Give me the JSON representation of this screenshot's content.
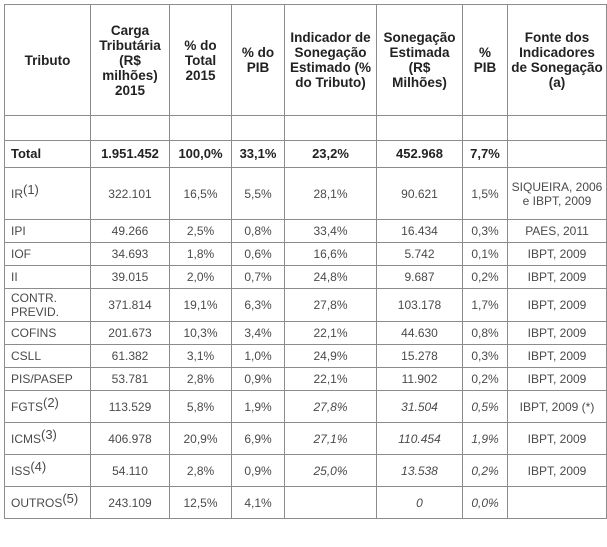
{
  "headers": [
    "Tributo",
    "Carga Tributária (R$ milhões) 2015",
    "% do Total 2015",
    "% do PIB",
    "Indicador de Sonegação Estimado (% do Tributo)",
    "Sonegação Estimada (R$ Milhões)",
    "% PIB",
    "Fonte dos Indicadores de Sonegação (a)"
  ],
  "total": {
    "tributo": "Total",
    "carga": "1.951.452",
    "pct_total": "100,0%",
    "pct_pib": "33,1%",
    "indicador": "23,2%",
    "sonegacao": "452.968",
    "sonegacao_pib": "7,7%",
    "fonte": ""
  },
  "rows": [
    {
      "tributo": "IR",
      "note": "(1)",
      "carga": "322.101",
      "pct_total": "16,5%",
      "pct_pib": "5,5%",
      "indicador": "28,1%",
      "sonegacao": "90.621",
      "sonegacao_pib": "1,5%",
      "fonte": "SIQUEIRA, 2006 e IBPT, 2009"
    },
    {
      "tributo": "IPI",
      "note": "",
      "carga": "49.266",
      "pct_total": "2,5%",
      "pct_pib": "0,8%",
      "indicador": "33,4%",
      "sonegacao": "16.434",
      "sonegacao_pib": "0,3%",
      "fonte": "PAES, 2011"
    },
    {
      "tributo": "IOF",
      "note": "",
      "carga": "34.693",
      "pct_total": "1,8%",
      "pct_pib": "0,6%",
      "indicador": "16,6%",
      "sonegacao": "5.742",
      "sonegacao_pib": "0,1%",
      "fonte": "IBPT, 2009"
    },
    {
      "tributo": "II",
      "note": "",
      "carga": "39.015",
      "pct_total": "2,0%",
      "pct_pib": "0,7%",
      "indicador": "24,8%",
      "sonegacao": "9.687",
      "sonegacao_pib": "0,2%",
      "fonte": "IBPT, 2009"
    },
    {
      "tributo": "CONTR. PREVID.",
      "note": "",
      "carga": "371.814",
      "pct_total": "19,1%",
      "pct_pib": "6,3%",
      "indicador": "27,8%",
      "sonegacao": "103.178",
      "sonegacao_pib": "1,7%",
      "fonte": "IBPT, 2009"
    },
    {
      "tributo": "COFINS",
      "note": "",
      "carga": "201.673",
      "pct_total": "10,3%",
      "pct_pib": "3,4%",
      "indicador": "22,1%",
      "sonegacao": "44.630",
      "sonegacao_pib": "0,8%",
      "fonte": "IBPT, 2009"
    },
    {
      "tributo": "CSLL",
      "note": "",
      "carga": "61.382",
      "pct_total": "3,1%",
      "pct_pib": "1,0%",
      "indicador": "24,9%",
      "sonegacao": "15.278",
      "sonegacao_pib": "0,3%",
      "fonte": "IBPT, 2009"
    },
    {
      "tributo": "PIS/PASEP",
      "note": "",
      "carga": "53.781",
      "pct_total": "2,8%",
      "pct_pib": "0,9%",
      "indicador": "22,1%",
      "sonegacao": "11.902",
      "sonegacao_pib": "0,2%",
      "fonte": "IBPT, 2009"
    },
    {
      "tributo": "FGTS",
      "note": "(2)",
      "carga": "113.529",
      "pct_total": "5,8%",
      "pct_pib": "1,9%",
      "indicador": "27,8%",
      "sonegacao": "31.504",
      "sonegacao_pib": "0,5%",
      "fonte": "IBPT, 2009 (*)",
      "italic": true
    },
    {
      "tributo": "ICMS",
      "note": "(3)",
      "carga": "406.978",
      "pct_total": "20,9%",
      "pct_pib": "6,9%",
      "indicador": "27,1%",
      "sonegacao": "110.454",
      "sonegacao_pib": "1,9%",
      "fonte": "IBPT, 2009",
      "italic": true
    },
    {
      "tributo": "ISS",
      "note": "(4)",
      "carga": "54.110",
      "pct_total": "2,8%",
      "pct_pib": "0,9%",
      "indicador": "25,0%",
      "sonegacao": "13.538",
      "sonegacao_pib": "0,2%",
      "fonte": "IBPT, 2009",
      "italic": true
    },
    {
      "tributo": "OUTROS",
      "note": "(5)",
      "carga": "243.109",
      "pct_total": "12,5%",
      "pct_pib": "4,1%",
      "indicador": "",
      "sonegacao": "0",
      "sonegacao_pib": "0,0%",
      "fonte": "",
      "italic": true
    }
  ]
}
